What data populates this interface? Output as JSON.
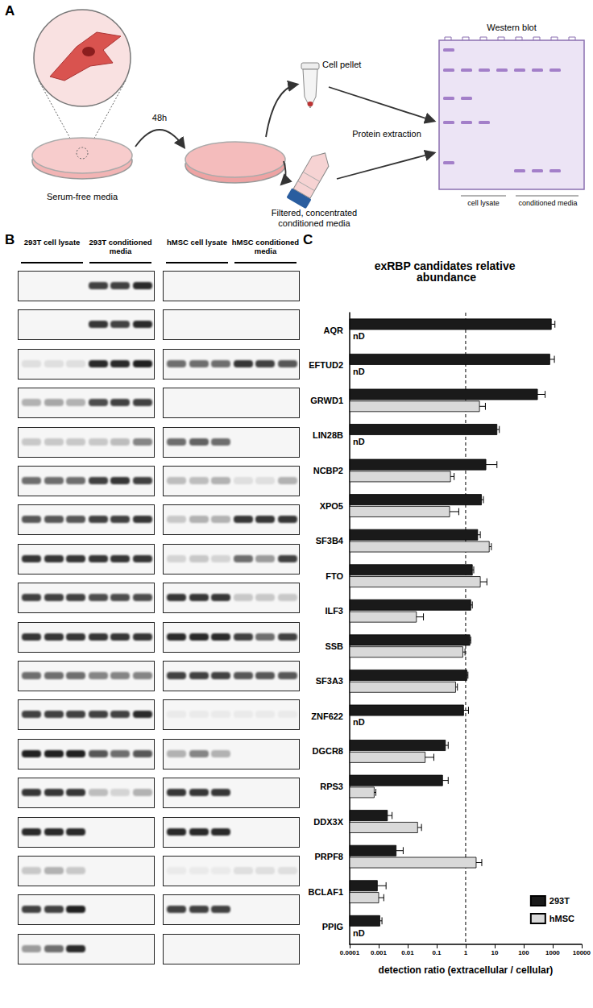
{
  "panel_a": {
    "label": "A",
    "serum_free_media": "Serum-free media",
    "time": "48h",
    "cell_pellet": "Cell pellet",
    "conditioned_media": "Filtered, concentrated conditioned media",
    "protein_extraction": "Protein extraction",
    "western_blot": "Western blot",
    "lane_labels": [
      "cell lysate",
      "conditioned media"
    ]
  },
  "panel_b": {
    "label": "B",
    "headers": [
      "293T cell lysate",
      "293T conditioned media",
      "hMSC cell lysate",
      "hMSC conditioned media"
    ],
    "band_intensity": [
      [
        0,
        0,
        0,
        0.8,
        0.8,
        0.9,
        0,
        0,
        0,
        0,
        0,
        0
      ],
      [
        0,
        0,
        0,
        0.85,
        0.8,
        0.9,
        0,
        0,
        0,
        0,
        0,
        0
      ],
      [
        0.1,
        0.1,
        0.1,
        0.9,
        0.9,
        0.95,
        0.6,
        0.6,
        0.6,
        0.85,
        0.8,
        0.7
      ],
      [
        0.3,
        0.35,
        0.3,
        0.75,
        0.8,
        0.8,
        0,
        0,
        0,
        0,
        0,
        0
      ],
      [
        0.2,
        0.2,
        0.2,
        0.2,
        0.25,
        0.5,
        0.6,
        0.65,
        0.6,
        0,
        0,
        0
      ],
      [
        0.6,
        0.6,
        0.6,
        0.8,
        0.85,
        0.8,
        0.25,
        0.25,
        0.3,
        0.1,
        0.1,
        0.3
      ],
      [
        0.7,
        0.7,
        0.7,
        0.8,
        0.8,
        0.85,
        0.2,
        0.3,
        0.3,
        0.85,
        0.85,
        0.85
      ],
      [
        0.85,
        0.85,
        0.85,
        0.85,
        0.85,
        0.85,
        0.15,
        0.2,
        0.15,
        0.6,
        0.4,
        0.8
      ],
      [
        0.8,
        0.8,
        0.8,
        0.75,
        0.75,
        0.75,
        0.85,
        0.85,
        0.85,
        0.2,
        0.2,
        0.2
      ],
      [
        0.85,
        0.85,
        0.85,
        0.85,
        0.85,
        0.85,
        0.9,
        0.9,
        0.9,
        0.8,
        0.6,
        0.8
      ],
      [
        0.6,
        0.6,
        0.6,
        0.5,
        0.5,
        0.5,
        0.8,
        0.8,
        0.8,
        0.7,
        0.7,
        0.7
      ],
      [
        0.8,
        0.8,
        0.8,
        0.8,
        0.8,
        0.9,
        0.05,
        0.05,
        0.05,
        0.05,
        0.05,
        0.05
      ],
      [
        0.95,
        0.95,
        0.95,
        0.7,
        0.6,
        0.7,
        0.3,
        0.5,
        0.3,
        0,
        0,
        0
      ],
      [
        0.85,
        0.85,
        0.85,
        0.25,
        0.15,
        0.3,
        0.85,
        0.85,
        0.85,
        0,
        0,
        0
      ],
      [
        0.9,
        0.9,
        0.9,
        0,
        0,
        0,
        0.9,
        0.9,
        0.9,
        0,
        0,
        0
      ],
      [
        0.2,
        0.3,
        0.2,
        0,
        0,
        0,
        0.05,
        0.05,
        0.05,
        0.1,
        0.1,
        0.1
      ],
      [
        0.8,
        0.8,
        0.95,
        0,
        0,
        0,
        0.8,
        0.8,
        0.8,
        0,
        0,
        0
      ],
      [
        0.4,
        0.6,
        0.9,
        0,
        0,
        0,
        0,
        0,
        0,
        0,
        0,
        0
      ]
    ]
  },
  "chart_data": {
    "type": "bar",
    "panel_label": "C",
    "orientation": "horizontal",
    "title": "exRBP candidates relative abundance",
    "xlabel": "detection ratio (extracellular / cellular)",
    "categories": [
      "AQR",
      "EFTUD2",
      "GRWD1",
      "LIN28B",
      "NCBP2",
      "XPO5",
      "SF3B4",
      "FTO",
      "ILF3",
      "SSB",
      "SF3A3",
      "ZNF622",
      "DGCR8",
      "RPS3",
      "DDX3X",
      "PRPF8",
      "BCLAF1",
      "PPIG"
    ],
    "series": [
      {
        "name": "293T",
        "color": "#1a1a1a",
        "values": [
          900,
          800,
          300,
          12,
          5,
          3.5,
          2.6,
          1.7,
          1.5,
          1.4,
          1.1,
          0.85,
          0.2,
          0.16,
          0.002,
          0.004,
          0.0009,
          0.0011
        ],
        "errors": [
          300,
          350,
          250,
          2.5,
          7,
          0.6,
          0.6,
          0.2,
          0.2,
          0.1,
          0.1,
          0.4,
          0.05,
          0.09,
          0.0009,
          0.003,
          0.0009,
          0.0002
        ]
      },
      {
        "name": "hMSC",
        "color": "#d9d9d9",
        "values": [
          null,
          null,
          3,
          null,
          0.3,
          0.28,
          6.5,
          3.2,
          0.02,
          0.8,
          0.45,
          null,
          0.04,
          0.0007,
          0.022,
          2.3,
          0.001,
          null
        ],
        "errors": [
          null,
          null,
          1.8,
          null,
          0.1,
          0.3,
          1.2,
          2.2,
          0.015,
          0.15,
          0.07,
          null,
          0.04,
          0.0001,
          0.008,
          1.3,
          0.0005,
          null
        ],
        "value_labels": [
          "nD",
          "nD",
          null,
          "nD",
          null,
          null,
          null,
          null,
          null,
          null,
          null,
          "nD",
          null,
          null,
          null,
          null,
          null,
          "nD"
        ]
      }
    ],
    "log": "x",
    "xlim": [
      0.0001,
      10000
    ],
    "xticks": [
      0.0001,
      0.001,
      0.01,
      0.1,
      1,
      10,
      100,
      1000,
      10000
    ],
    "reference_x": 1,
    "grid": false,
    "legend": "lower right"
  }
}
